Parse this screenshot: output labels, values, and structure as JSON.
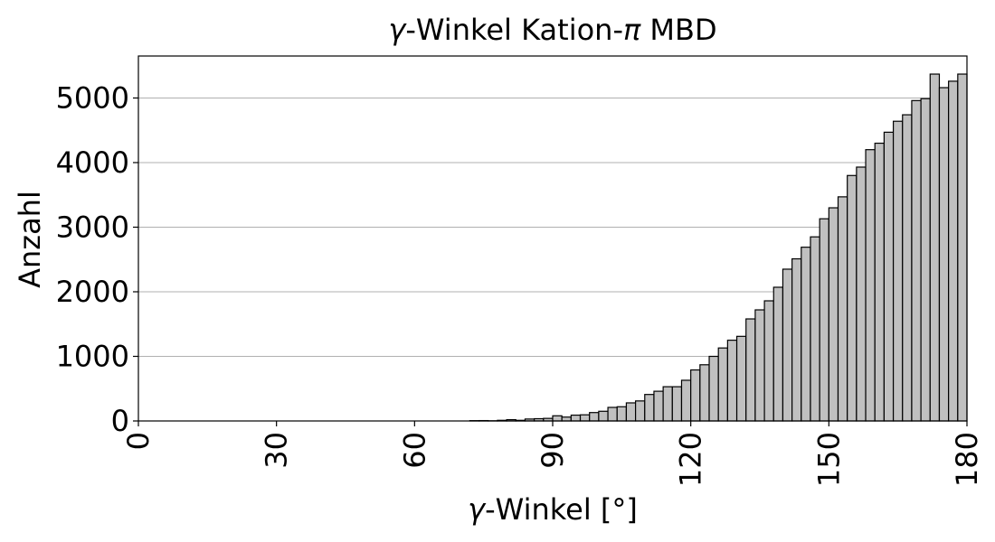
{
  "chart_data": {
    "type": "bar",
    "title_var": "γ",
    "title_text": "-Winkel Kation-",
    "title_pi": "π",
    "title_suffix": " MBD",
    "xlabel_var": "γ",
    "xlabel_text": "-Winkel [°]",
    "ylabel": "Anzahl",
    "xlim": [
      0,
      180
    ],
    "ylim": [
      0,
      5650
    ],
    "xticks": [
      0,
      30,
      60,
      90,
      120,
      150,
      180
    ],
    "yticks": [
      0,
      1000,
      2000,
      3000,
      4000,
      5000
    ],
    "grid": "y",
    "bar_color": "#c0c0c0",
    "edge_color": "#000000",
    "bin_width": 2,
    "bins_start": 72,
    "values": [
      5,
      6,
      3,
      10,
      20,
      10,
      30,
      35,
      40,
      80,
      60,
      90,
      95,
      130,
      150,
      210,
      220,
      280,
      310,
      410,
      460,
      530,
      530,
      630,
      790,
      870,
      1000,
      1130,
      1250,
      1310,
      1580,
      1720,
      1860,
      2070,
      2350,
      2510,
      2690,
      2850,
      3130,
      3300,
      3470,
      3800,
      3930,
      4200,
      4300,
      4470,
      4640,
      4740,
      4960,
      4990,
      5370,
      5160,
      5260,
      5370
    ]
  }
}
